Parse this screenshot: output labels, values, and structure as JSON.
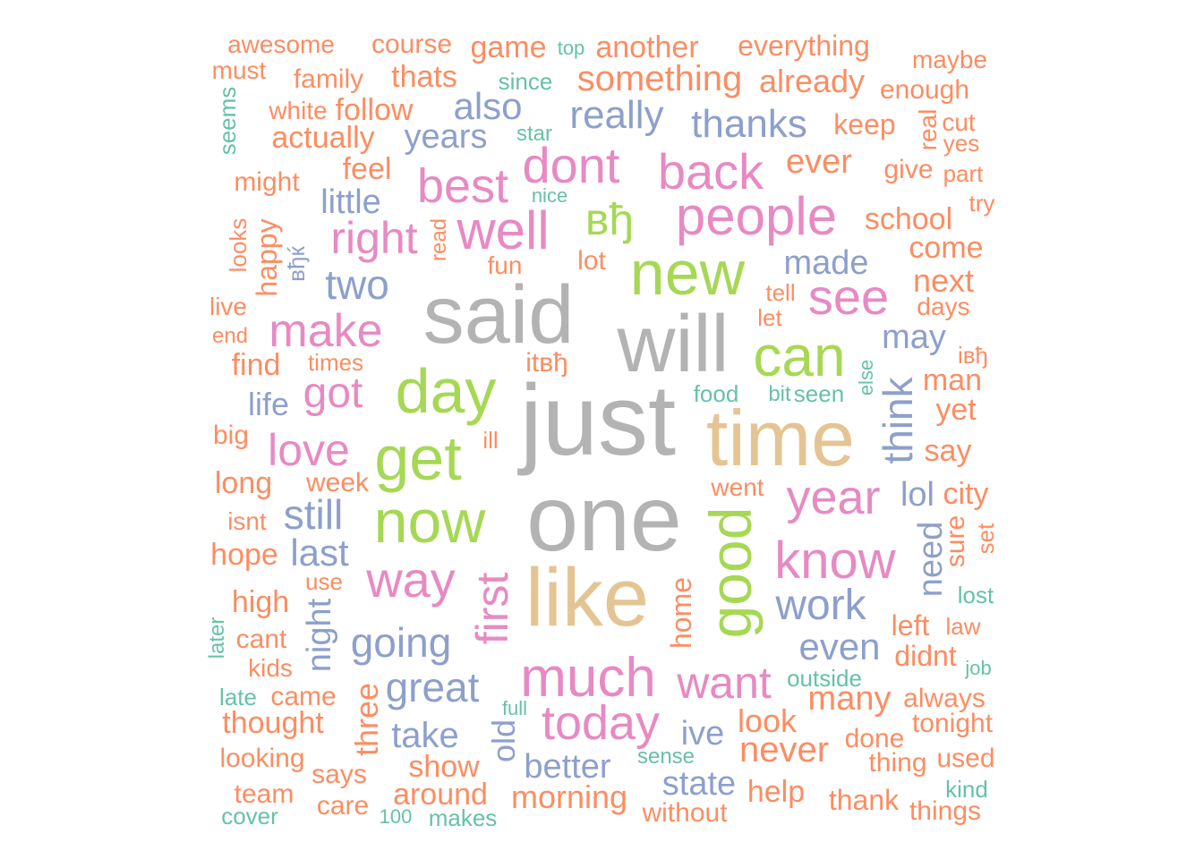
{
  "palette": {
    "gray": "#b3b3b3",
    "tan": "#e5c494",
    "green": "#a6d854",
    "pink": "#e78ac3",
    "blue": "#8da0cb",
    "orange": "#fc8d62",
    "teal": "#66c2a5"
  },
  "words": [
    {
      "text": "just",
      "color": "gray"
    },
    {
      "text": "one",
      "color": "gray"
    },
    {
      "text": "said",
      "color": "gray"
    },
    {
      "text": "will",
      "color": "gray"
    },
    {
      "text": "like",
      "color": "tan"
    },
    {
      "text": "time",
      "color": "tan"
    },
    {
      "text": "new",
      "color": "green"
    },
    {
      "text": "day",
      "color": "green"
    },
    {
      "text": "get",
      "color": "green"
    },
    {
      "text": "now",
      "color": "green"
    },
    {
      "text": "can",
      "color": "green"
    },
    {
      "text": "good",
      "color": "green"
    },
    {
      "text": "first",
      "color": "pink"
    },
    {
      "text": "well",
      "color": "pink"
    },
    {
      "text": "вђ",
      "color": "green"
    },
    {
      "text": "people",
      "color": "pink"
    },
    {
      "text": "back",
      "color": "pink"
    },
    {
      "text": "dont",
      "color": "pink"
    },
    {
      "text": "best",
      "color": "pink"
    },
    {
      "text": "see",
      "color": "pink"
    },
    {
      "text": "right",
      "color": "pink"
    },
    {
      "text": "make",
      "color": "pink"
    },
    {
      "text": "got",
      "color": "pink"
    },
    {
      "text": "love",
      "color": "pink"
    },
    {
      "text": "way",
      "color": "pink"
    },
    {
      "text": "much",
      "color": "pink"
    },
    {
      "text": "today",
      "color": "pink"
    },
    {
      "text": "want",
      "color": "pink"
    },
    {
      "text": "know",
      "color": "pink"
    },
    {
      "text": "year",
      "color": "pink"
    },
    {
      "text": "really",
      "color": "blue"
    },
    {
      "text": "thanks",
      "color": "blue"
    },
    {
      "text": "also",
      "color": "blue"
    },
    {
      "text": "years",
      "color": "blue"
    },
    {
      "text": "little",
      "color": "blue"
    },
    {
      "text": "two",
      "color": "blue"
    },
    {
      "text": "made",
      "color": "blue"
    },
    {
      "text": "may",
      "color": "blue"
    },
    {
      "text": "think",
      "color": "blue"
    },
    {
      "text": "life",
      "color": "blue"
    },
    {
      "text": "still",
      "color": "blue"
    },
    {
      "text": "last",
      "color": "blue"
    },
    {
      "text": "night",
      "color": "blue"
    },
    {
      "text": "going",
      "color": "blue"
    },
    {
      "text": "great",
      "color": "blue"
    },
    {
      "text": "work",
      "color": "blue"
    },
    {
      "text": "even",
      "color": "blue"
    },
    {
      "text": "lol",
      "color": "blue"
    },
    {
      "text": "need",
      "color": "blue"
    },
    {
      "text": "take",
      "color": "blue"
    },
    {
      "text": "better",
      "color": "blue"
    },
    {
      "text": "state",
      "color": "blue"
    },
    {
      "text": "ive",
      "color": "blue"
    },
    {
      "text": "old",
      "color": "blue"
    },
    {
      "text": "вђќ",
      "color": "blue"
    },
    {
      "text": "awesome",
      "color": "orange"
    },
    {
      "text": "course",
      "color": "orange"
    },
    {
      "text": "game",
      "color": "orange"
    },
    {
      "text": "top",
      "color": "teal"
    },
    {
      "text": "another",
      "color": "orange"
    },
    {
      "text": "everything",
      "color": "orange"
    },
    {
      "text": "must",
      "color": "orange"
    },
    {
      "text": "family",
      "color": "orange"
    },
    {
      "text": "thats",
      "color": "orange"
    },
    {
      "text": "since",
      "color": "teal"
    },
    {
      "text": "something",
      "color": "orange"
    },
    {
      "text": "already",
      "color": "orange"
    },
    {
      "text": "maybe",
      "color": "orange"
    },
    {
      "text": "enough",
      "color": "orange"
    },
    {
      "text": "seems",
      "color": "teal"
    },
    {
      "text": "white",
      "color": "orange"
    },
    {
      "text": "follow",
      "color": "orange"
    },
    {
      "text": "actually",
      "color": "orange"
    },
    {
      "text": "star",
      "color": "teal"
    },
    {
      "text": "keep",
      "color": "orange"
    },
    {
      "text": "real",
      "color": "orange"
    },
    {
      "text": "cut",
      "color": "orange"
    },
    {
      "text": "yes",
      "color": "orange"
    },
    {
      "text": "feel",
      "color": "orange"
    },
    {
      "text": "ever",
      "color": "orange"
    },
    {
      "text": "give",
      "color": "orange"
    },
    {
      "text": "part",
      "color": "orange"
    },
    {
      "text": "might",
      "color": "orange"
    },
    {
      "text": "nice",
      "color": "teal"
    },
    {
      "text": "try",
      "color": "orange"
    },
    {
      "text": "school",
      "color": "orange"
    },
    {
      "text": "looks",
      "color": "orange"
    },
    {
      "text": "happy",
      "color": "orange"
    },
    {
      "text": "read",
      "color": "orange"
    },
    {
      "text": "come",
      "color": "orange"
    },
    {
      "text": "fun",
      "color": "orange"
    },
    {
      "text": "lot",
      "color": "orange"
    },
    {
      "text": "next",
      "color": "orange"
    },
    {
      "text": "tell",
      "color": "orange"
    },
    {
      "text": "live",
      "color": "orange"
    },
    {
      "text": "days",
      "color": "orange"
    },
    {
      "text": "let",
      "color": "orange"
    },
    {
      "text": "end",
      "color": "orange"
    },
    {
      "text": "itвђ",
      "color": "orange"
    },
    {
      "text": "iвђ",
      "color": "orange"
    },
    {
      "text": "find",
      "color": "orange"
    },
    {
      "text": "times",
      "color": "orange"
    },
    {
      "text": "else",
      "color": "teal"
    },
    {
      "text": "man",
      "color": "orange"
    },
    {
      "text": "food",
      "color": "teal"
    },
    {
      "text": "bit",
      "color": "teal"
    },
    {
      "text": "seen",
      "color": "teal"
    },
    {
      "text": "yet",
      "color": "orange"
    },
    {
      "text": "big",
      "color": "orange"
    },
    {
      "text": "ill",
      "color": "orange"
    },
    {
      "text": "say",
      "color": "orange"
    },
    {
      "text": "long",
      "color": "orange"
    },
    {
      "text": "week",
      "color": "orange"
    },
    {
      "text": "went",
      "color": "orange"
    },
    {
      "text": "city",
      "color": "orange"
    },
    {
      "text": "isnt",
      "color": "orange"
    },
    {
      "text": "sure",
      "color": "orange"
    },
    {
      "text": "set",
      "color": "orange"
    },
    {
      "text": "hope",
      "color": "orange"
    },
    {
      "text": "use",
      "color": "orange"
    },
    {
      "text": "home",
      "color": "orange"
    },
    {
      "text": "lost",
      "color": "teal"
    },
    {
      "text": "high",
      "color": "orange"
    },
    {
      "text": "law",
      "color": "orange"
    },
    {
      "text": "later",
      "color": "teal"
    },
    {
      "text": "left",
      "color": "orange"
    },
    {
      "text": "cant",
      "color": "orange"
    },
    {
      "text": "didnt",
      "color": "orange"
    },
    {
      "text": "kids",
      "color": "orange"
    },
    {
      "text": "job",
      "color": "teal"
    },
    {
      "text": "outside",
      "color": "teal"
    },
    {
      "text": "late",
      "color": "teal"
    },
    {
      "text": "came",
      "color": "orange"
    },
    {
      "text": "many",
      "color": "orange"
    },
    {
      "text": "always",
      "color": "orange"
    },
    {
      "text": "full",
      "color": "teal"
    },
    {
      "text": "thought",
      "color": "orange"
    },
    {
      "text": "three",
      "color": "orange"
    },
    {
      "text": "look",
      "color": "orange"
    },
    {
      "text": "tonight",
      "color": "orange"
    },
    {
      "text": "done",
      "color": "orange"
    },
    {
      "text": "never",
      "color": "orange"
    },
    {
      "text": "looking",
      "color": "orange"
    },
    {
      "text": "sense",
      "color": "teal"
    },
    {
      "text": "thing",
      "color": "orange"
    },
    {
      "text": "used",
      "color": "orange"
    },
    {
      "text": "show",
      "color": "orange"
    },
    {
      "text": "says",
      "color": "orange"
    },
    {
      "text": "kind",
      "color": "teal"
    },
    {
      "text": "team",
      "color": "orange"
    },
    {
      "text": "around",
      "color": "orange"
    },
    {
      "text": "morning",
      "color": "orange"
    },
    {
      "text": "help",
      "color": "orange"
    },
    {
      "text": "thank",
      "color": "orange"
    },
    {
      "text": "care",
      "color": "orange"
    },
    {
      "text": "things",
      "color": "orange"
    },
    {
      "text": "cover",
      "color": "teal"
    },
    {
      "text": "100",
      "color": "teal"
    },
    {
      "text": "makes",
      "color": "teal"
    },
    {
      "text": "without",
      "color": "orange"
    }
  ]
}
